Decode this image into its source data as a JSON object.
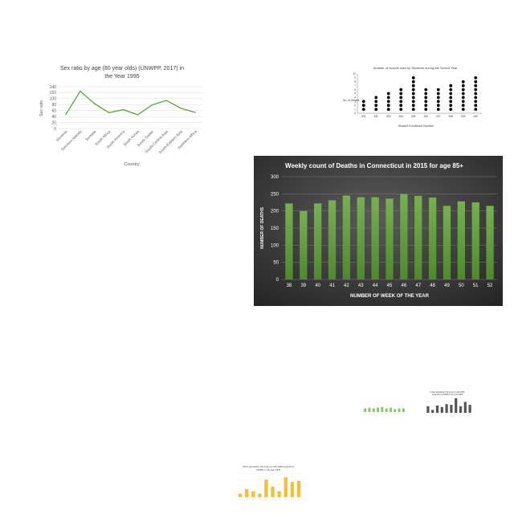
{
  "chart_data": [
    {
      "type": "line",
      "title": "Sex ratio by age (80 year olds) (UNWPP, 2017) in the Year 1995",
      "title_lines": [
        "Sex ratio by age (80 year olds) (UNWPP, 2017) in",
        "the Year 1995"
      ],
      "xlabel": "Country",
      "ylabel": "Sex ratio",
      "ylim": [
        0,
        140
      ],
      "yticks": [
        "0",
        "20",
        "40",
        "60",
        "80",
        "100",
        "120",
        "140"
      ],
      "grid": true,
      "color": "#5aa832",
      "categories": [
        "Slovenia",
        "Solomon Islands",
        "Somalia",
        "South Africa",
        "South America",
        "South Korea",
        "South Sudan",
        "South-Central Asia",
        "South-Eastern Asia",
        "Southern Africa"
      ],
      "values": [
        47,
        125,
        83,
        53,
        63,
        46,
        79,
        94,
        68,
        54
      ]
    },
    {
      "type": "scatter",
      "title": "Number of Novels read by Students during the School Year",
      "xlabel": "Student Enrollment Number",
      "ylabel": "No. of Novels",
      "ylim": [
        0,
        10
      ],
      "yticks": [
        "0",
        "1",
        "2",
        "3",
        "4",
        "5",
        "6",
        "7",
        "8",
        "9",
        "10"
      ],
      "categories": [
        "531",
        "532",
        "533",
        "534",
        "535",
        "536",
        "537",
        "538",
        "539",
        "540"
      ],
      "values": [
        3,
        4,
        5,
        6,
        9,
        6,
        6,
        7,
        8,
        9
      ]
    },
    {
      "type": "bar",
      "title": "Weekly count of Deaths in Connecticut in 2015 for age 85+",
      "xlabel": "NUMBER OF WEEK OF THE YEAR",
      "ylabel": "NUMBER OF DEATHS",
      "ylim": [
        0,
        300
      ],
      "yticks": [
        "0",
        "50",
        "100",
        "150",
        "200",
        "250",
        "300"
      ],
      "grid": true,
      "categories": [
        "38",
        "39",
        "40",
        "41",
        "42",
        "43",
        "44",
        "45",
        "46",
        "47",
        "48",
        "49",
        "50",
        "51",
        "52"
      ],
      "values": [
        222,
        200,
        222,
        231,
        245,
        240,
        240,
        236,
        249,
        244,
        239,
        215,
        228,
        225,
        215
      ]
    },
    {
      "type": "bar",
      "color": "#8ec468",
      "values": [
        5,
        6,
        5,
        6,
        7,
        5,
        6,
        4,
        5,
        5
      ]
    },
    {
      "type": "bar",
      "title": "Urban population (%) long-run with 2050 projections (OWID) in the year 2000",
      "title_lines": [
        "Urban population (%) long-run with 2050",
        "projections (OWID) in the year 2000"
      ],
      "color": "#555555",
      "values": [
        45,
        20,
        50,
        40,
        60,
        55,
        100,
        45,
        75,
        55
      ]
    },
    {
      "type": "bar",
      "title": "Urban population (%) long-run with 2050 projections (OWID) in the year 1944",
      "title_lines": [
        "Urban population (%) long-run with 2050 projections",
        "(OWID) in the year 1944"
      ],
      "color": "#f2c230",
      "values": [
        15,
        35,
        25,
        15,
        75,
        45,
        25,
        85,
        65,
        70
      ]
    }
  ]
}
